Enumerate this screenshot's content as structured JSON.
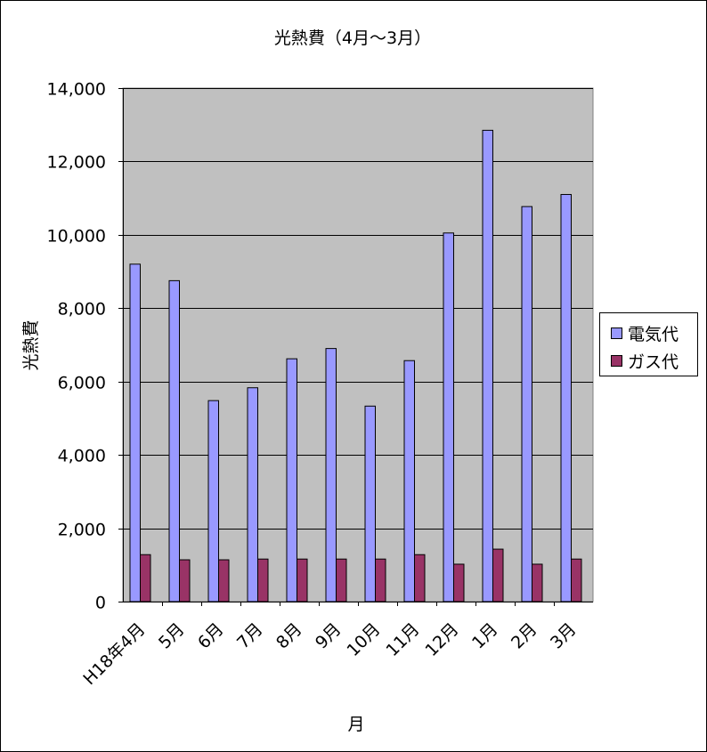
{
  "chart_data": {
    "type": "bar",
    "title": "光熱費（4月～3月）",
    "xlabel": "月",
    "ylabel": "光熱費",
    "ylim": [
      0,
      14000
    ],
    "yticks": [
      0,
      2000,
      4000,
      6000,
      8000,
      10000,
      12000,
      14000
    ],
    "ytick_labels": [
      "0",
      "2,000",
      "4,000",
      "6,000",
      "8,000",
      "10,000",
      "12,000",
      "14,000"
    ],
    "grid": true,
    "legend_position": "right",
    "categories": [
      "H18年4月",
      "5月",
      "6月",
      "7月",
      "8月",
      "9月",
      "10月",
      "11月",
      "12月",
      "1月",
      "2月",
      "3月"
    ],
    "series": [
      {
        "name": "電気代",
        "color": "#9999ff",
        "values": [
          9200,
          8750,
          5480,
          5830,
          6620,
          6900,
          5330,
          6570,
          10050,
          12850,
          10770,
          11100
        ]
      },
      {
        "name": "ガス代",
        "color": "#993366",
        "values": [
          1280,
          1140,
          1140,
          1160,
          1160,
          1160,
          1160,
          1280,
          1020,
          1430,
          1020,
          1160
        ]
      }
    ],
    "plot_background": "#c0c0c0"
  }
}
